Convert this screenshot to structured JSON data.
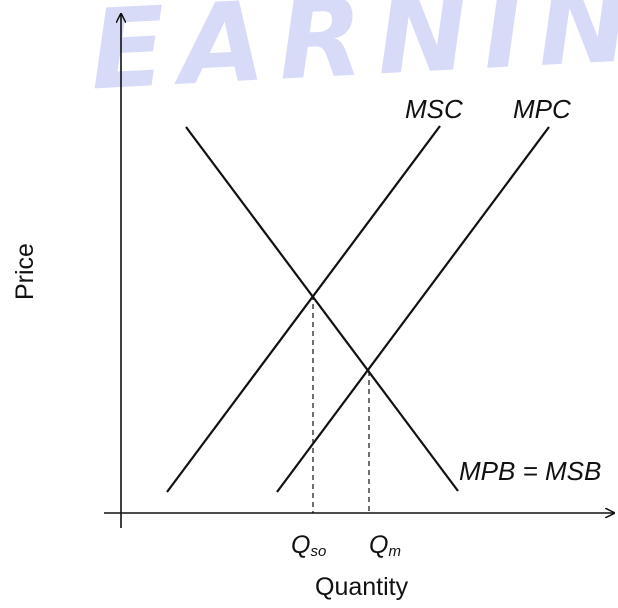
{
  "watermark": "EARNIN",
  "axes": {
    "x_title": "Quantity",
    "y_title": "Price"
  },
  "curves": {
    "msc": "MSC",
    "mpc": "MPC",
    "demand": "MPB = MSB"
  },
  "ticks": {
    "q_social_optimum": {
      "main": "Q",
      "sub": "so"
    },
    "q_market": {
      "main": "Q",
      "sub": "m"
    }
  },
  "colors": {
    "line": "#111111",
    "watermark": "#d7dbf7"
  }
}
